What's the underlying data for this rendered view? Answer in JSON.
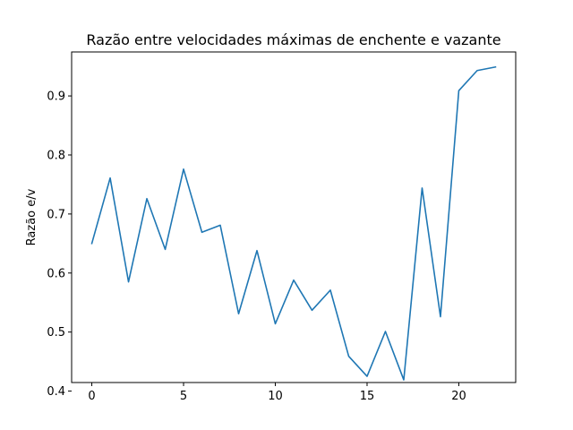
{
  "chart_data": {
    "type": "line",
    "title": "Razão entre velocidades máximas de enchente e vazante",
    "xlabel": "",
    "ylabel": "Razão e/v",
    "xlim": [
      -1.1,
      23.1
    ],
    "ylim": [
      0.4145,
      0.9745
    ],
    "xticks": [
      0,
      5,
      10,
      15,
      20
    ],
    "xtick_labels": [
      "0",
      "5",
      "10",
      "15",
      "20"
    ],
    "yticks": [
      0.4,
      0.5,
      0.6,
      0.7,
      0.8,
      0.9
    ],
    "ytick_labels": [
      "0.4",
      "0.5",
      "0.6",
      "0.7",
      "0.8",
      "0.9"
    ],
    "grid": false,
    "series": [
      {
        "color": "#1f77b4",
        "x": [
          0,
          1,
          2,
          3,
          4,
          5,
          6,
          7,
          8,
          9,
          10,
          11,
          12,
          13,
          14,
          15,
          16,
          17,
          18,
          19,
          20,
          21,
          22
        ],
        "values": [
          0.65,
          0.761,
          0.585,
          0.726,
          0.64,
          0.776,
          0.669,
          0.681,
          0.531,
          0.638,
          0.514,
          0.588,
          0.537,
          0.571,
          0.459,
          0.425,
          0.501,
          0.419,
          0.744,
          0.526,
          0.909,
          0.943,
          0.949
        ]
      }
    ]
  }
}
